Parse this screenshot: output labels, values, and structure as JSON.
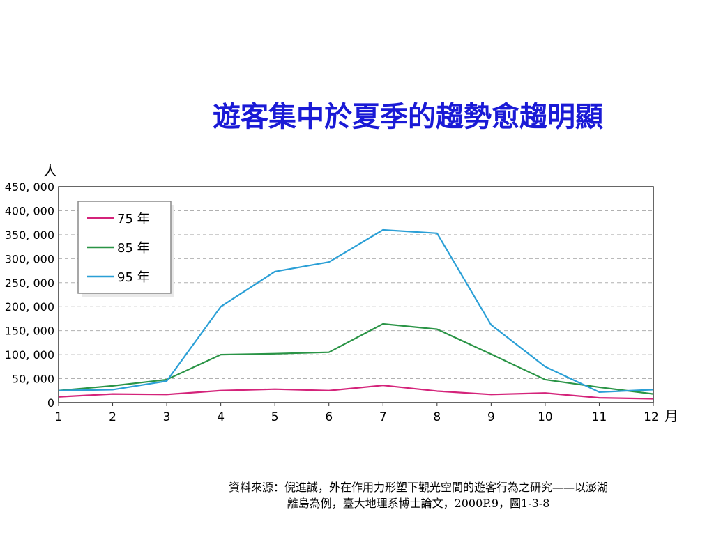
{
  "title": "遊客集中於夏季的趨勢愈趨明顯",
  "source": {
    "line1": "資料來源：倪進誠，外在作用力形塑下觀光空間的遊客行為之研究——以澎湖",
    "line2": "離島為例，臺大地理系博士論文，2000P.9，圖1-3-8"
  },
  "chart_data": {
    "type": "line",
    "ylabel": "人",
    "xlabel": "月",
    "x": [
      1,
      2,
      3,
      4,
      5,
      6,
      7,
      8,
      9,
      10,
      11,
      12
    ],
    "x_ticks": [
      "1",
      "2",
      "3",
      "4",
      "5",
      "6",
      "7",
      "8",
      "9",
      "10",
      "11",
      "12"
    ],
    "y_ticks": [
      "450, 000",
      "400, 000",
      "350, 000",
      "300, 000",
      "250, 000",
      "200, 000",
      "150, 000",
      "100, 000",
      "50, 000",
      "0"
    ],
    "ylim": [
      0,
      450000
    ],
    "grid": "horizontal dashed",
    "legend_position": "top-left",
    "series": [
      {
        "name": "75 年",
        "color": "#d4237a",
        "values": [
          12000,
          18000,
          17000,
          25000,
          28000,
          25000,
          36000,
          24000,
          17000,
          20000,
          10000,
          8000
        ]
      },
      {
        "name": "85 年",
        "color": "#2a9446",
        "values": [
          25000,
          35000,
          48000,
          100000,
          102000,
          105000,
          164000,
          153000,
          101000,
          48000,
          32000,
          18000
        ]
      },
      {
        "name": "95 年",
        "color": "#2a9fd6",
        "values": [
          25000,
          27000,
          45000,
          200000,
          273000,
          293000,
          360000,
          353000,
          162000,
          75000,
          22000,
          27000
        ]
      }
    ]
  }
}
